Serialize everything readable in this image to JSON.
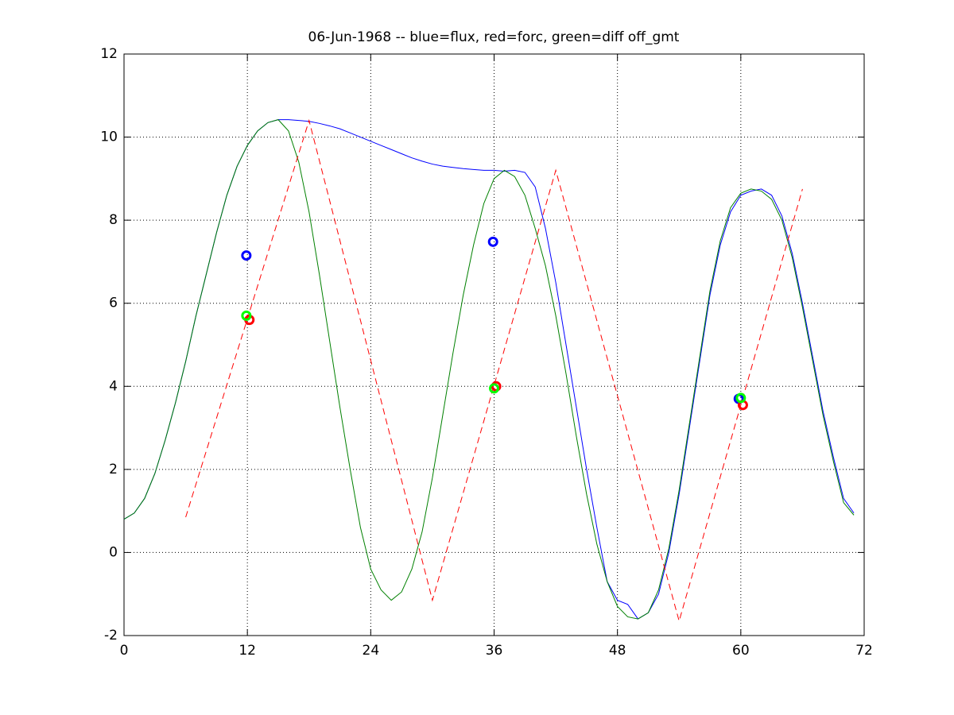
{
  "chart_data": {
    "type": "line",
    "title": "06-Jun-1968 -- blue=flux, red=forc, green=diff off_gmt",
    "xlim": [
      0,
      72
    ],
    "xticks": [
      0,
      12,
      24,
      36,
      48,
      60,
      72
    ],
    "ylim": [
      -2,
      12
    ],
    "yticks": [
      -2,
      0,
      2,
      4,
      6,
      8,
      10,
      12
    ],
    "grid": true,
    "series": [
      {
        "color": "#0000ff",
        "style": "solid",
        "x": [
          0,
          1,
          2,
          3,
          4,
          5,
          6,
          7,
          8,
          9,
          10,
          11,
          12,
          13,
          14,
          15,
          16,
          17,
          18,
          19,
          20,
          21,
          22,
          23,
          24,
          25,
          26,
          27,
          28,
          29,
          30,
          31,
          32,
          33,
          34,
          35,
          36,
          37,
          38,
          39,
          40,
          41,
          42,
          43,
          44,
          45,
          46,
          47,
          48,
          49,
          50,
          51,
          52,
          53,
          54,
          55,
          56,
          57,
          58,
          59,
          60,
          61,
          62,
          63,
          64,
          65,
          66,
          67,
          68,
          69,
          70,
          71
        ],
        "values": [
          0.8,
          0.95,
          1.3,
          1.9,
          2.7,
          3.6,
          4.6,
          5.7,
          6.7,
          7.7,
          8.6,
          9.3,
          9.8,
          10.15,
          10.35,
          10.42,
          10.42,
          10.4,
          10.38,
          10.33,
          10.27,
          10.2,
          10.1,
          10.0,
          9.9,
          9.8,
          9.7,
          9.6,
          9.5,
          9.42,
          9.35,
          9.3,
          9.27,
          9.24,
          9.22,
          9.2,
          9.2,
          9.18,
          9.2,
          9.15,
          8.8,
          7.8,
          6.5,
          5.0,
          3.5,
          2.0,
          0.6,
          -0.7,
          -1.15,
          -1.25,
          -1.6,
          -1.45,
          -1.0,
          0,
          1.4,
          3.0,
          4.6,
          6.2,
          7.4,
          8.2,
          8.6,
          8.7,
          8.75,
          8.6,
          8.1,
          7.2,
          6.0,
          4.7,
          3.4,
          2.3,
          1.3,
          0.95
        ]
      },
      {
        "color": "#008000",
        "style": "solid",
        "x": [
          0,
          1,
          2,
          3,
          4,
          5,
          6,
          7,
          8,
          9,
          10,
          11,
          12,
          13,
          14,
          15,
          16,
          17,
          18,
          19,
          20,
          21,
          22,
          23,
          24,
          25,
          26,
          27,
          28,
          29,
          30,
          31,
          32,
          33,
          34,
          35,
          36,
          37,
          38,
          39,
          40,
          41,
          42,
          43,
          44,
          45,
          46,
          47,
          48,
          49,
          50,
          51,
          52,
          53,
          54,
          55,
          56,
          57,
          58,
          59,
          60,
          61,
          62,
          63,
          64,
          65,
          66,
          67,
          68,
          69,
          70,
          71
        ],
        "values": [
          0.8,
          0.95,
          1.3,
          1.9,
          2.7,
          3.6,
          4.6,
          5.7,
          6.7,
          7.7,
          8.6,
          9.3,
          9.8,
          10.15,
          10.35,
          10.42,
          10.15,
          9.4,
          8.2,
          6.7,
          5.1,
          3.5,
          2.0,
          0.6,
          -0.4,
          -0.9,
          -1.15,
          -0.95,
          -0.4,
          0.5,
          1.8,
          3.3,
          4.8,
          6.2,
          7.4,
          8.4,
          9.0,
          9.2,
          9.05,
          8.6,
          7.8,
          6.9,
          5.7,
          4.3,
          2.8,
          1.4,
          0.2,
          -0.7,
          -1.3,
          -1.55,
          -1.6,
          -1.45,
          -0.9,
          0.1,
          1.5,
          3.1,
          4.7,
          6.3,
          7.5,
          8.3,
          8.65,
          8.75,
          8.7,
          8.5,
          8.0,
          7.1,
          5.9,
          4.6,
          3.3,
          2.2,
          1.2,
          0.9
        ]
      },
      {
        "color": "#ff0000",
        "style": "dashed",
        "x": [
          6,
          18,
          30,
          42,
          54,
          66
        ],
        "values": [
          0.85,
          10.4,
          -1.15,
          9.2,
          -1.65,
          8.75
        ]
      },
      {
        "color": "#0000ff",
        "style": "markers",
        "x": [
          11.9,
          35.9,
          59.8
        ],
        "values": [
          7.15,
          7.48,
          3.7
        ]
      },
      {
        "color": "#ff0000",
        "style": "markers",
        "x": [
          12.2,
          36.2,
          60.2
        ],
        "values": [
          5.6,
          4.0,
          3.55
        ]
      },
      {
        "color": "#00ff00",
        "style": "markers",
        "x": [
          11.9,
          36.0,
          60.0
        ],
        "values": [
          5.7,
          3.95,
          3.72
        ]
      }
    ]
  }
}
